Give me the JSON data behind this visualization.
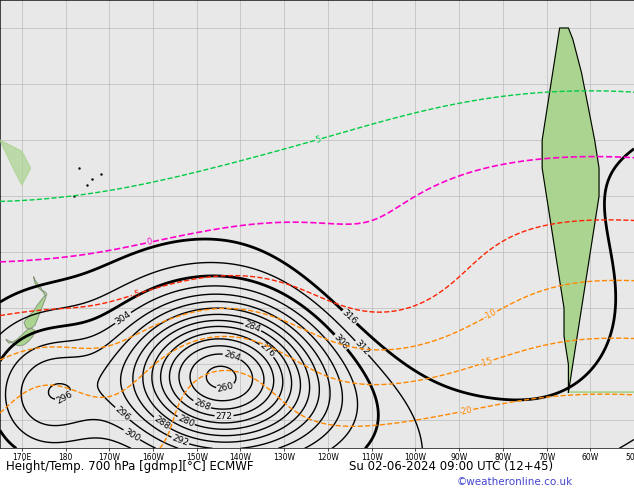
{
  "title_left": "Height/Temp. 700 hPa [gdmp][°C] ECMWF",
  "title_right": "Su 02-06-2024 09:00 UTC (12+45)",
  "copyright": "©weatheronline.co.uk",
  "background_color": "#ffffff",
  "ocean_color": "#e8e8e8",
  "land_color": "#aad490",
  "land_border_color": "#888888",
  "grid_color": "#bbbbbb",
  "contour_color_height": "#000000",
  "contour_color_temp_orange": "#ff8800",
  "contour_color_temp_red": "#ff2200",
  "contour_color_temp_magenta": "#ff00cc",
  "contour_color_temp_green": "#00cc44",
  "bottom_bar_color": "#dde4f0",
  "title_fontsize": 8.5,
  "copyright_color": "#4444cc",
  "label_fontsize": 7
}
